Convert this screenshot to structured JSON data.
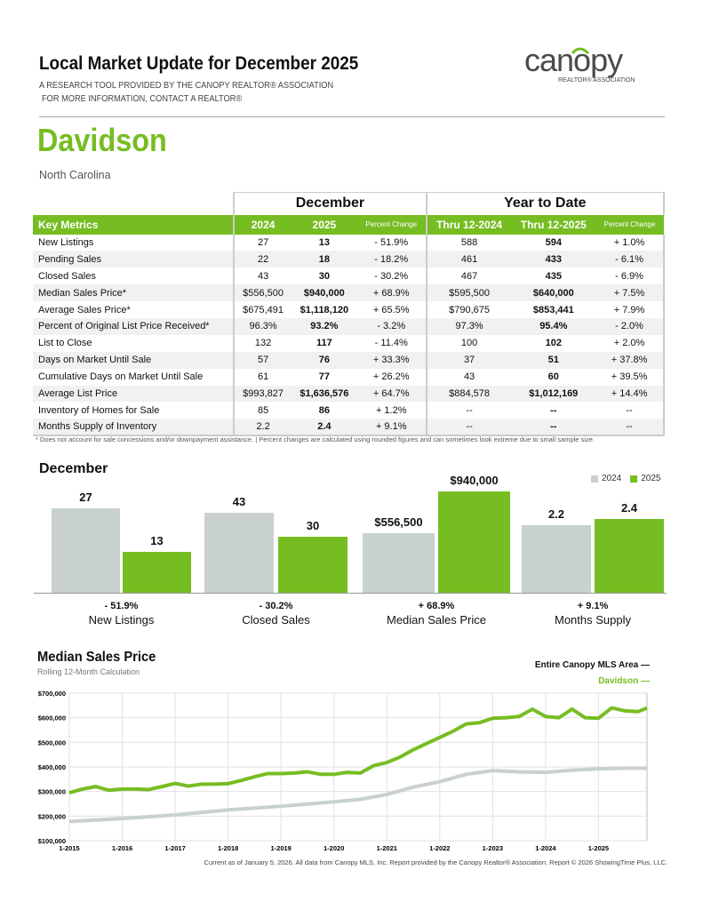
{
  "header": {
    "title": "Local Market Update for December 2025",
    "subtitle1": "A RESEARCH TOOL PROVIDED BY THE CANOPY REALTOR® ASSOCIATION",
    "subtitle2": "FOR MORE INFORMATION, CONTACT A REALTOR®",
    "logo_text": "canopy",
    "logo_sub": "REALTOR® ASSOCIATION"
  },
  "area": {
    "name": "Davidson",
    "state": "North Carolina"
  },
  "table": {
    "group_headers": [
      "December",
      "Year to Date"
    ],
    "columns": [
      "Key Metrics",
      "2024",
      "2025",
      "Percent Change",
      "Thru 12-2024",
      "Thru 12-2025",
      "Percent Change"
    ],
    "rows": [
      [
        "New Listings",
        "27",
        "13",
        "- 51.9%",
        "588",
        "594",
        "+ 1.0%"
      ],
      [
        "Pending Sales",
        "22",
        "18",
        "- 18.2%",
        "461",
        "433",
        "- 6.1%"
      ],
      [
        "Closed Sales",
        "43",
        "30",
        "- 30.2%",
        "467",
        "435",
        "- 6.9%"
      ],
      [
        "Median Sales Price*",
        "$556,500",
        "$940,000",
        "+ 68.9%",
        "$595,500",
        "$640,000",
        "+ 7.5%"
      ],
      [
        "Average Sales Price*",
        "$675,491",
        "$1,118,120",
        "+ 65.5%",
        "$790,675",
        "$853,441",
        "+ 7.9%"
      ],
      [
        "Percent of Original List Price Received*",
        "96.3%",
        "93.2%",
        "- 3.2%",
        "97.3%",
        "95.4%",
        "- 2.0%"
      ],
      [
        "List to Close",
        "132",
        "117",
        "- 11.4%",
        "100",
        "102",
        "+ 2.0%"
      ],
      [
        "Days on Market Until Sale",
        "57",
        "76",
        "+ 33.3%",
        "37",
        "51",
        "+ 37.8%"
      ],
      [
        "Cumulative Days on Market Until Sale",
        "61",
        "77",
        "+ 26.2%",
        "43",
        "60",
        "+ 39.5%"
      ],
      [
        "Average List Price",
        "$993,827",
        "$1,636,576",
        "+ 64.7%",
        "$884,578",
        "$1,012,169",
        "+ 14.4%"
      ],
      [
        "Inventory of Homes for Sale",
        "85",
        "86",
        "+ 1.2%",
        "--",
        "--",
        "--"
      ],
      [
        "Months Supply of Inventory",
        "2.2",
        "2.4",
        "+ 9.1%",
        "--",
        "--",
        "--"
      ]
    ],
    "footnote": "* Does not account for sale concessions and/or downpayment assistance.  |  Percent changes are calculated using rounded figures and can sometimes look extreme due to small sample size."
  },
  "chart_data": [
    {
      "type": "bar",
      "title": "December",
      "legend": [
        "2024",
        "2025"
      ],
      "legend_placement": "top-right",
      "colors": {
        "2024": "#c9d1cf",
        "2025": "#76bd22"
      },
      "groups": [
        {
          "name": "New Listings",
          "values": [
            27,
            13
          ],
          "labels": [
            "27",
            "13"
          ],
          "change": "- 51.9%"
        },
        {
          "name": "Closed Sales",
          "values": [
            43,
            30
          ],
          "labels": [
            "43",
            "30"
          ],
          "change": "- 30.2%"
        },
        {
          "name": "Median Sales Price",
          "values": [
            556500,
            940000
          ],
          "labels": [
            "$556,500",
            "$940,000"
          ],
          "change": "+ 68.9%"
        },
        {
          "name": "Months Supply",
          "values": [
            2.2,
            2.4
          ],
          "labels": [
            "2.2",
            "2.4"
          ],
          "change": "+ 9.1%"
        }
      ]
    },
    {
      "type": "line",
      "title": "Median Sales Price",
      "subtitle": "Rolling 12-Month Calculation",
      "ylim": [
        100000,
        700000
      ],
      "grid": true,
      "yticks": [
        "$700,000",
        "$600,000",
        "$500,000",
        "$400,000",
        "$300,000",
        "$200,000",
        "$100,000"
      ],
      "xticks": [
        "1-2015",
        "1-2016",
        "1-2017",
        "1-2018",
        "1-2019",
        "1-2020",
        "1-2021",
        "1-2022",
        "1-2023",
        "1-2024",
        "1-2025"
      ],
      "series": [
        {
          "name": "Entire Canopy MLS Area",
          "color": "#c9d1cf",
          "points": [
            [
              "2015-01",
              178000
            ],
            [
              "2016-01",
              190000
            ],
            [
              "2017-01",
              205000
            ],
            [
              "2018-01",
              225000
            ],
            [
              "2019-01",
              240000
            ],
            [
              "2020-01",
              258000
            ],
            [
              "2020-07",
              268000
            ],
            [
              "2021-01",
              288000
            ],
            [
              "2021-07",
              318000
            ],
            [
              "2022-01",
              340000
            ],
            [
              "2022-07",
              370000
            ],
            [
              "2023-01",
              385000
            ],
            [
              "2023-07",
              380000
            ],
            [
              "2024-01",
              378000
            ],
            [
              "2024-07",
              387000
            ],
            [
              "2025-01",
              392000
            ],
            [
              "2025-07",
              395000
            ],
            [
              "2025-12",
              395000
            ]
          ]
        },
        {
          "name": "Davidson",
          "color": "#76bd22",
          "points": [
            [
              "2015-01",
              295000
            ],
            [
              "2015-04",
              310000
            ],
            [
              "2015-07",
              320000
            ],
            [
              "2015-10",
              305000
            ],
            [
              "2016-01",
              310000
            ],
            [
              "2016-04",
              310000
            ],
            [
              "2016-07",
              308000
            ],
            [
              "2016-10",
              320000
            ],
            [
              "2017-01",
              333000
            ],
            [
              "2017-04",
              322000
            ],
            [
              "2017-07",
              330000
            ],
            [
              "2017-10",
              330000
            ],
            [
              "2018-01",
              332000
            ],
            [
              "2018-04",
              345000
            ],
            [
              "2018-07",
              360000
            ],
            [
              "2018-10",
              373000
            ],
            [
              "2019-01",
              373000
            ],
            [
              "2019-04",
              375000
            ],
            [
              "2019-07",
              380000
            ],
            [
              "2019-10",
              370000
            ],
            [
              "2020-01",
              370000
            ],
            [
              "2020-04",
              378000
            ],
            [
              "2020-07",
              375000
            ],
            [
              "2020-10",
              405000
            ],
            [
              "2021-01",
              418000
            ],
            [
              "2021-04",
              440000
            ],
            [
              "2021-07",
              470000
            ],
            [
              "2021-10",
              495000
            ],
            [
              "2022-01",
              520000
            ],
            [
              "2022-04",
              545000
            ],
            [
              "2022-07",
              575000
            ],
            [
              "2022-10",
              580000
            ],
            [
              "2023-01",
              598000
            ],
            [
              "2023-04",
              600000
            ],
            [
              "2023-07",
              605000
            ],
            [
              "2023-10",
              635000
            ],
            [
              "2024-01",
              605000
            ],
            [
              "2024-04",
              600000
            ],
            [
              "2024-07",
              635000
            ],
            [
              "2024-10",
              600000
            ],
            [
              "2025-01",
              598000
            ],
            [
              "2025-04",
              640000
            ],
            [
              "2025-07",
              628000
            ],
            [
              "2025-10",
              625000
            ],
            [
              "2025-12",
              640000
            ]
          ]
        }
      ],
      "legend_labels": [
        "Entire Canopy MLS Area —",
        "Davidson —"
      ]
    }
  ],
  "footer": "Current as of January 5, 2026. All data from Canopy MLS, Inc. Report provided by the Canopy Realtor® Association. Report © 2026 ShowingTime Plus, LLC."
}
